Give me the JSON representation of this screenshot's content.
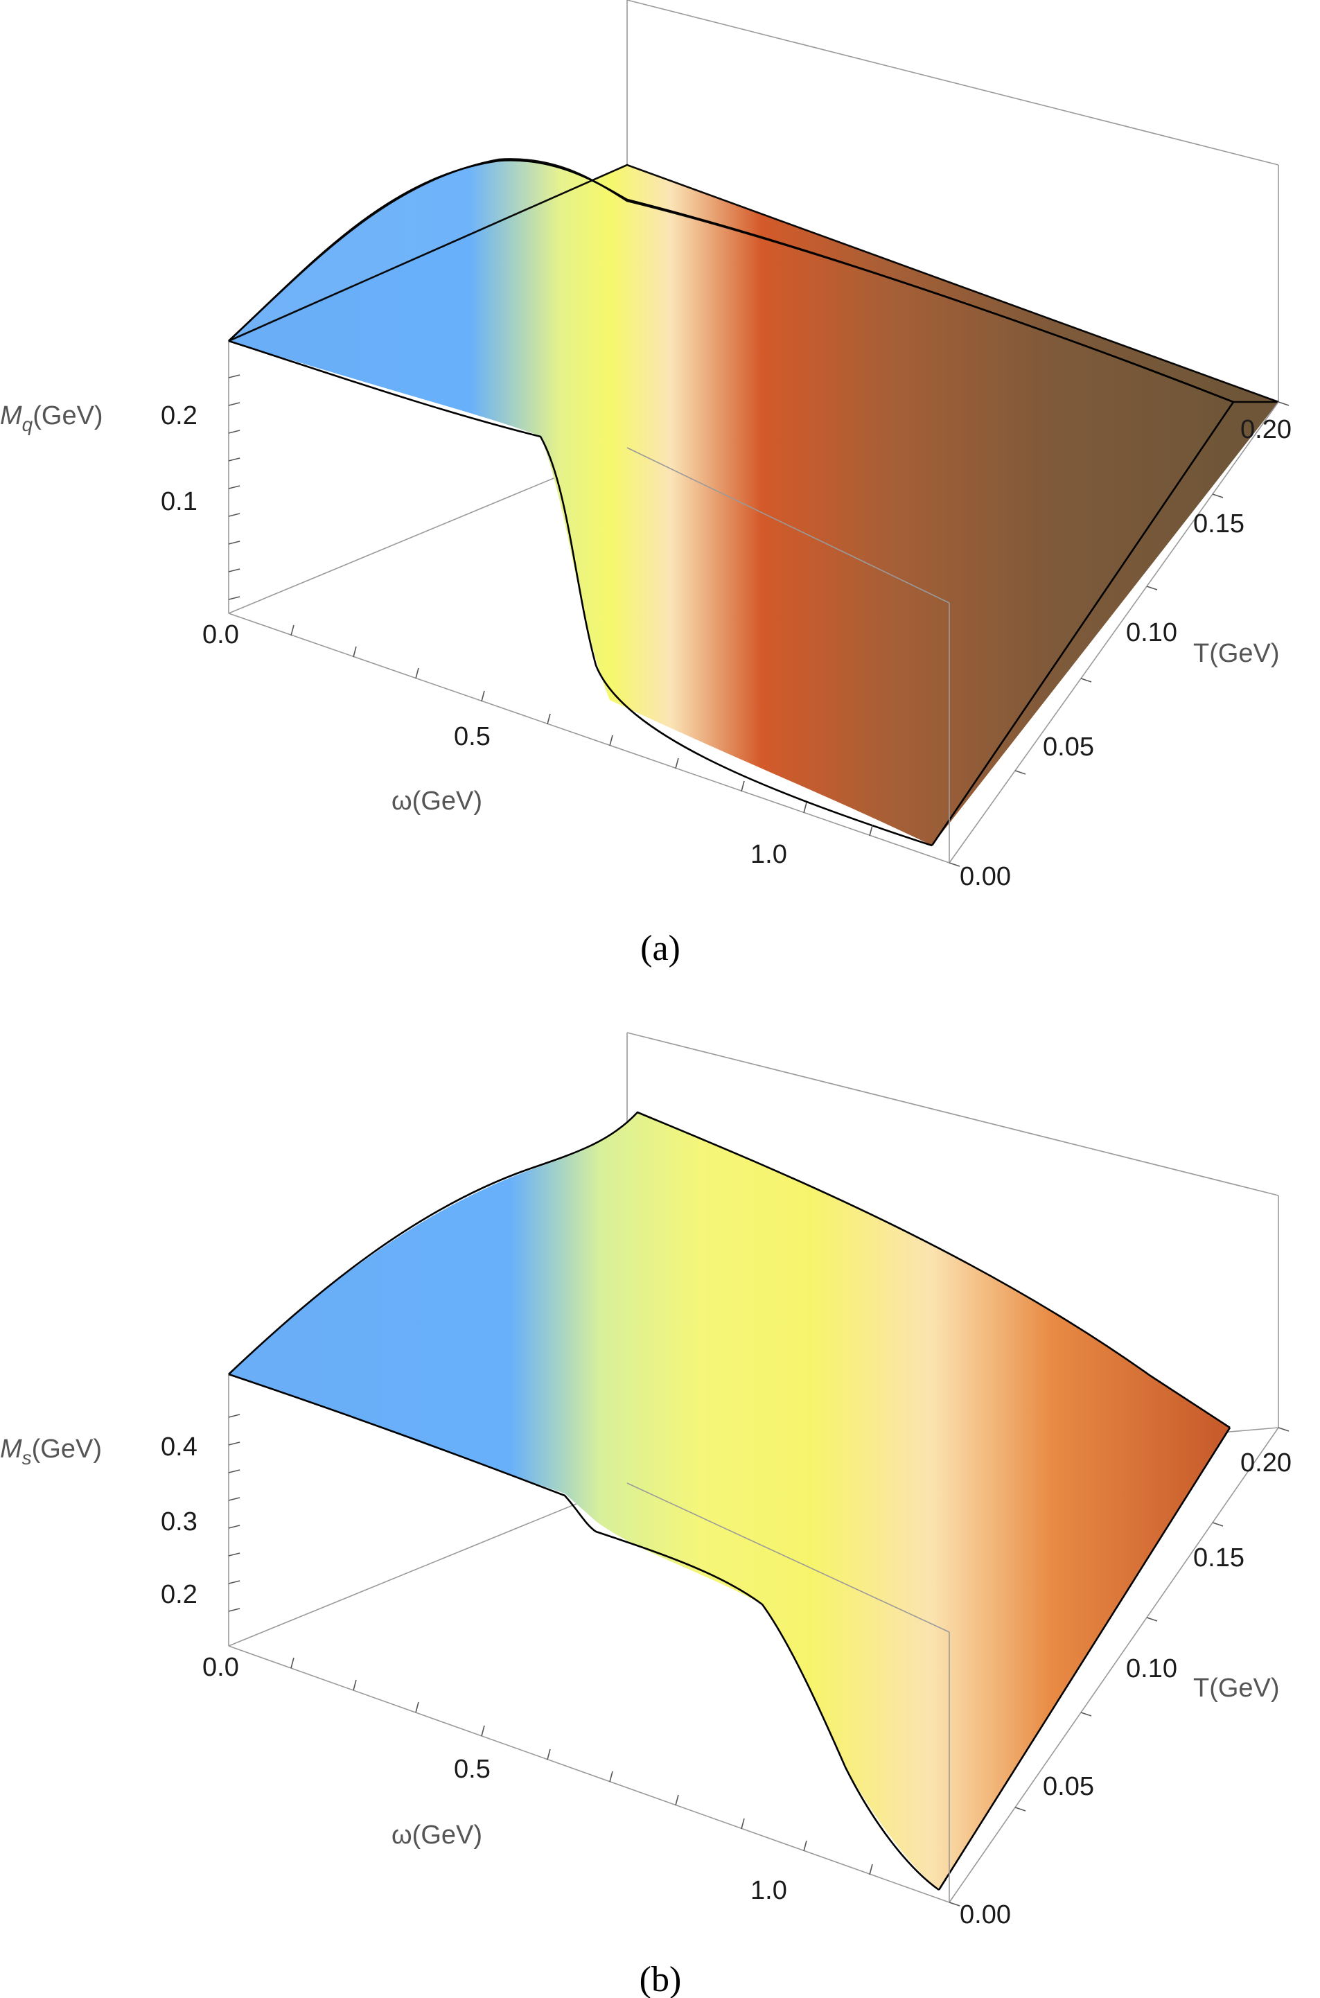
{
  "chart_data": [
    {
      "panel": "(a)",
      "type": "surface3d",
      "title": "",
      "xlabel": "ω(GeV)",
      "ylabel": "T(GeV)",
      "zlabel_main": "M",
      "zlabel_sub": "q",
      "zlabel_unit": "(GeV)",
      "x_ticks": [
        "0.5",
        "1.0"
      ],
      "y_ticks": [
        "0.00",
        "0.05",
        "0.10",
        "0.15",
        "0.20"
      ],
      "z_ticks": [
        "0.0",
        "0.1",
        "0.2"
      ],
      "xlim": [
        0,
        1.2
      ],
      "ylim": [
        0,
        0.2
      ],
      "zlim": [
        0,
        0.25
      ],
      "edges": {
        "T_max": {
          "T": 0.2,
          "omega": [
            0,
            0.2,
            0.4,
            0.5,
            0.6,
            0.8,
            1.0,
            1.2
          ],
          "M": [
            0.236,
            0.236,
            0.236,
            0.236,
            0.236,
            0.236,
            0.236,
            0.236
          ]
        },
        "T_zero": {
          "T": 0.0,
          "omega": [
            0,
            0.2,
            0.4,
            0.5,
            0.55,
            0.6,
            0.65,
            0.7,
            0.8,
            1.0,
            1.2
          ],
          "M": [
            0.236,
            0.236,
            0.236,
            0.22,
            0.13,
            0.07,
            0.04,
            0.03,
            0.02,
            0.01,
            0.005
          ]
        },
        "omega_zero": {
          "omega": 0.0,
          "T": [
            0,
            0.05,
            0.1,
            0.15,
            0.2
          ],
          "M": [
            0.236,
            0.236,
            0.236,
            0.236,
            0.236
          ]
        }
      }
    },
    {
      "panel": "(b)",
      "type": "surface3d",
      "title": "",
      "xlabel": "ω(GeV)",
      "ylabel": "T(GeV)",
      "zlabel_main": "M",
      "zlabel_sub": "s",
      "zlabel_unit": "(GeV)",
      "x_ticks": [
        "0.5",
        "1.0"
      ],
      "y_ticks": [
        "0.00",
        "0.05",
        "0.10",
        "0.15",
        "0.20"
      ],
      "z_ticks": [
        "0.0",
        "0.2",
        "0.3",
        "0.4"
      ],
      "xlim": [
        0,
        1.2
      ],
      "ylim": [
        0,
        0.2
      ],
      "zlim": [
        0.15,
        0.45
      ],
      "edges": {
        "T_max": {
          "T": 0.2,
          "omega": [
            0,
            0.3,
            0.6,
            0.8,
            1.0,
            1.2
          ],
          "M": [
            0.43,
            0.43,
            0.43,
            0.42,
            0.39,
            0.37
          ]
        },
        "T_zero": {
          "T": 0.0,
          "omega": [
            0,
            0.3,
            0.5,
            0.55,
            0.7,
            0.85,
            0.9,
            1.0,
            1.1,
            1.2
          ],
          "M": [
            0.43,
            0.43,
            0.41,
            0.36,
            0.33,
            0.32,
            0.28,
            0.22,
            0.19,
            0.165
          ]
        },
        "omega_zero": {
          "omega": 0.0,
          "T": [
            0,
            0.05,
            0.1,
            0.15,
            0.2
          ],
          "M": [
            0.43,
            0.43,
            0.43,
            0.43,
            0.43
          ]
        }
      }
    }
  ]
}
